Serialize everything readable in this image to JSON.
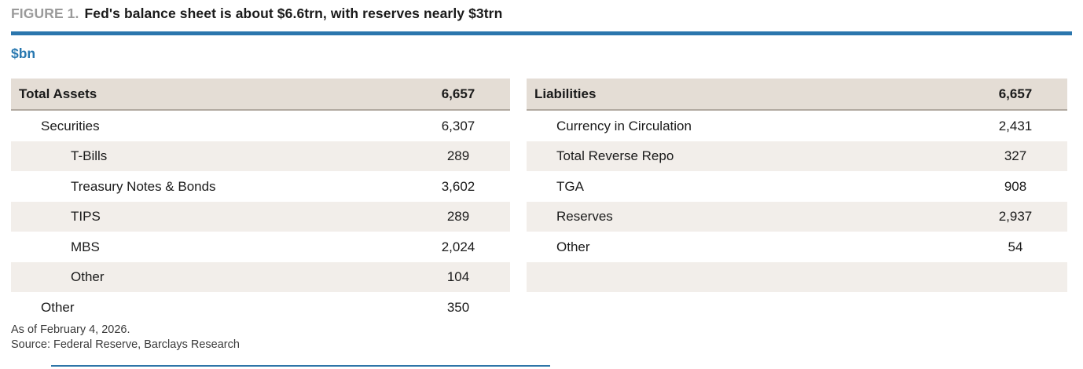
{
  "figure": {
    "label": "FIGURE 1.",
    "title": "Fed's balance sheet is about $6.6trn, with reserves nearly $3trn",
    "unit": "$bn"
  },
  "assets": {
    "header_label": "Total Assets",
    "header_value": "6,657",
    "rows": [
      {
        "label": "Securities",
        "value": "6,307"
      },
      {
        "label": "T-Bills",
        "value": "289"
      },
      {
        "label": "Treasury Notes & Bonds",
        "value": "3,602"
      },
      {
        "label": "TIPS",
        "value": "289"
      },
      {
        "label": "MBS",
        "value": "2,024"
      },
      {
        "label": "Other",
        "value": "104"
      },
      {
        "label": "Other",
        "value": "350"
      }
    ]
  },
  "liabilities": {
    "header_label": "Liabilities",
    "header_value": "6,657",
    "rows": [
      {
        "label": "Currency in Circulation",
        "value": "2,431"
      },
      {
        "label": "Total Reverse Repo",
        "value": "327"
      },
      {
        "label": "TGA",
        "value": "908"
      },
      {
        "label": "Reserves",
        "value": "2,937"
      },
      {
        "label": "Other",
        "value": "54"
      },
      {
        "label": "",
        "value": ""
      }
    ]
  },
  "footer": {
    "as_of": "As of February 4, 2026.",
    "source": "Source: Federal Reserve, Barclays Research"
  },
  "colors": {
    "accent_blue": "#2b76ad",
    "unit_blue": "#2878b0",
    "header_row_bg": "#e4ddd5",
    "stripe_row_bg": "#f2eeea",
    "header_border": "#b2aaa1",
    "figure_label_gray": "#9a9a9a",
    "text": "#1a1a1a",
    "footnote_text": "#3a3a3a"
  },
  "chart_data": {
    "type": "table",
    "title": "Fed's balance sheet is about $6.6trn, with reserves nearly $3trn",
    "unit": "$bn",
    "tables": [
      {
        "name": "Assets",
        "rows": [
          [
            "Total Assets",
            6657
          ],
          [
            "Securities",
            6307
          ],
          [
            "T-Bills",
            289
          ],
          [
            "Treasury Notes & Bonds",
            3602
          ],
          [
            "TIPS",
            289
          ],
          [
            "MBS",
            2024
          ],
          [
            "Other",
            104
          ],
          [
            "Other",
            350
          ]
        ]
      },
      {
        "name": "Liabilities",
        "rows": [
          [
            "Liabilities",
            6657
          ],
          [
            "Currency in Circulation",
            2431
          ],
          [
            "Total Reverse Repo",
            327
          ],
          [
            "TGA",
            908
          ],
          [
            "Reserves",
            2937
          ],
          [
            "Other",
            54
          ]
        ]
      }
    ]
  }
}
